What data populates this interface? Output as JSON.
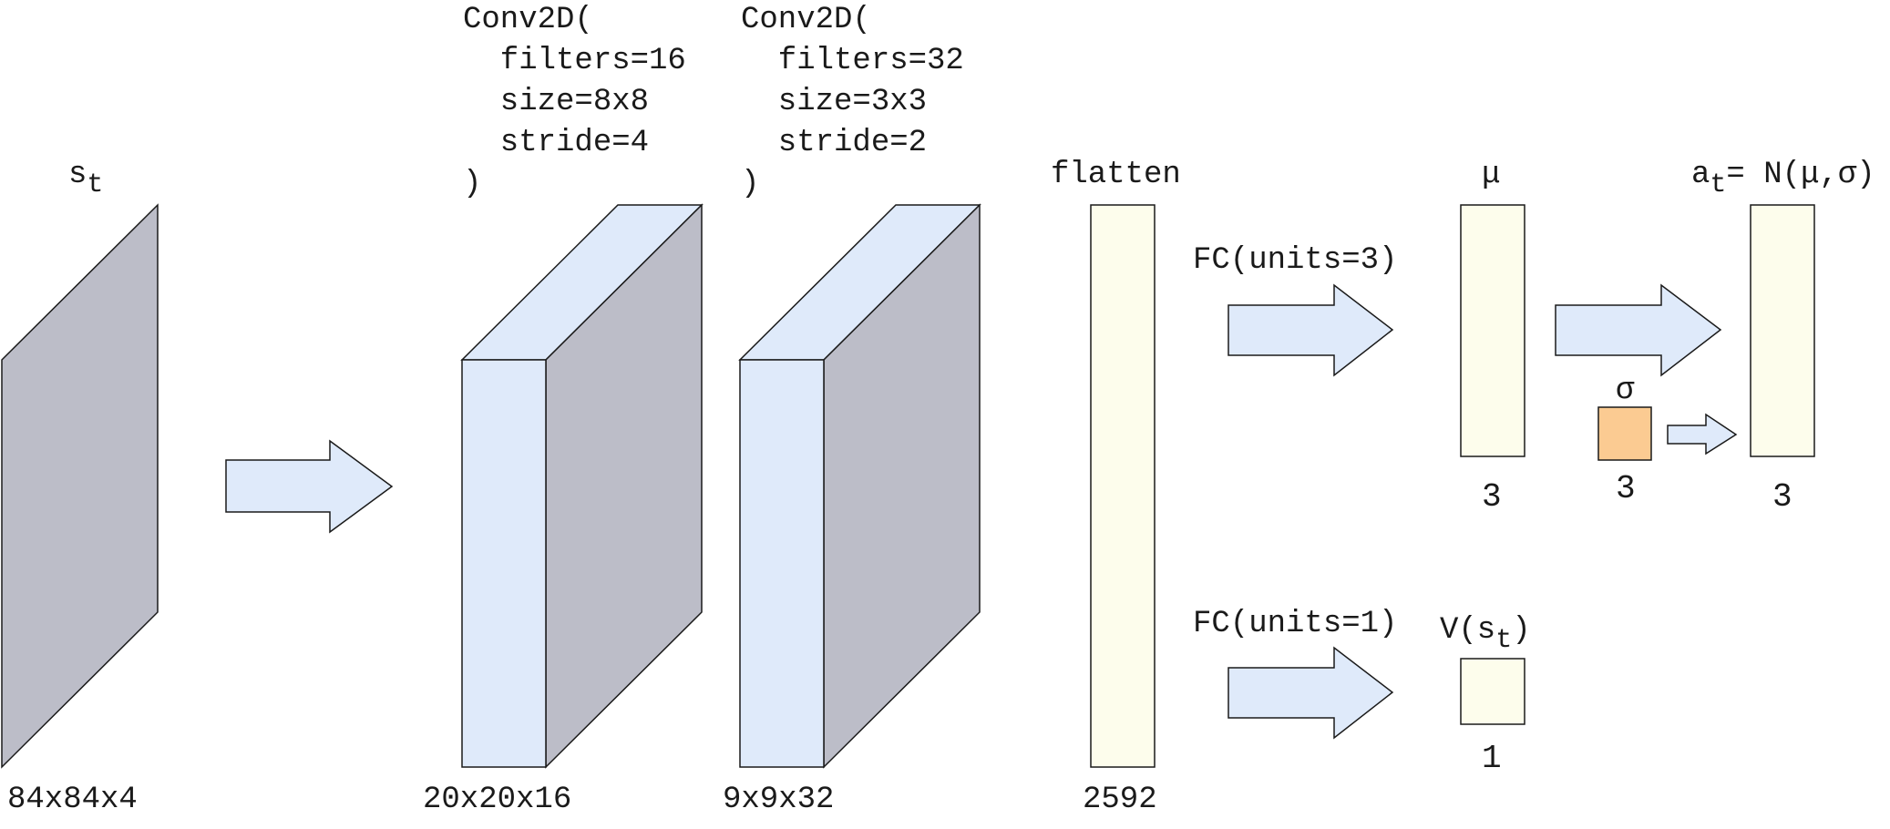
{
  "input": {
    "symbol": "s",
    "subscript": "t",
    "shape": "84x84x4"
  },
  "conv1": {
    "lines": [
      "Conv2D(",
      "  filters=16",
      "  size=8x8",
      "  stride=4",
      ")"
    ],
    "shape": "20x20x16"
  },
  "conv2": {
    "lines": [
      "Conv2D(",
      "  filters=32",
      "  size=3x3",
      "  stride=2",
      ")"
    ],
    "shape": "9x9x32"
  },
  "flatten": {
    "label": "flatten",
    "size": "2592"
  },
  "fc_mu": {
    "label": "FC(units=3)"
  },
  "fc_v": {
    "label": "FC(units=1)"
  },
  "mu": {
    "label": "μ",
    "size": "3"
  },
  "sigma": {
    "label": "σ",
    "size": "3"
  },
  "action": {
    "symbol": "a",
    "subscript": "t",
    "formula": "= N(μ,σ)",
    "size": "3"
  },
  "value": {
    "prefix": "V(s",
    "subscript": "t",
    "suffix": ")",
    "size": "1"
  },
  "colors": {
    "input_gray": "#bcbdc8",
    "conv_blue": "#dfeafa",
    "vector_cream": "#fdfdec",
    "sigma_orange": "#fbcb92"
  },
  "icons": [
    "right-arrow-icon"
  ]
}
